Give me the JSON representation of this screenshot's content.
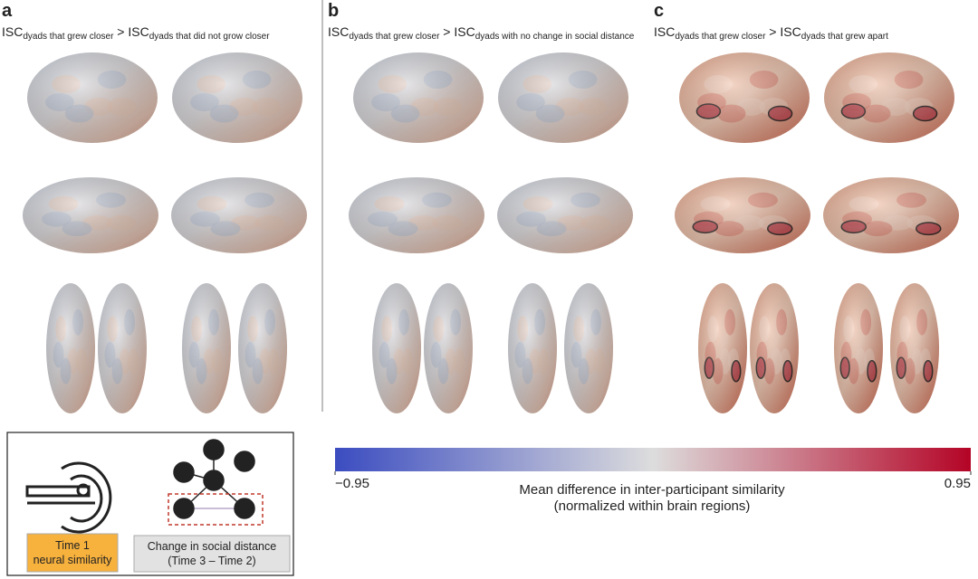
{
  "panels": [
    {
      "label": "a",
      "title": [
        {
          "text": "ISC"
        },
        {
          "text": "dyads that grew closer",
          "sub": true
        },
        {
          "text": " > ISC"
        },
        {
          "text": "dyads that did not grow closer",
          "sub": true
        }
      ]
    },
    {
      "label": "b",
      "title": [
        {
          "text": "ISC"
        },
        {
          "text": "dyads that grew closer",
          "sub": true
        },
        {
          "text": " > ISC"
        },
        {
          "text": "dyads with no change in social distance",
          "sub": true
        }
      ]
    },
    {
      "label": "c",
      "title": [
        {
          "text": "ISC"
        },
        {
          "text": "dyads that grew closer",
          "sub": true
        },
        {
          "text": " > ISC"
        },
        {
          "text": "dyads that grew apart",
          "sub": true
        }
      ]
    }
  ],
  "colorbar": {
    "lim": [
      -0.95,
      0.95
    ],
    "ticks": [
      {
        "value": -0.95,
        "label": "−0.95"
      },
      0.95
    ],
    "colors": [
      "#3b4cc0",
      "#dddddd",
      "#b40426"
    ],
    "label": [
      "Mean difference in inter-participant similarity",
      "(normalized within brain regions)"
    ]
  },
  "legend": {
    "time1": [
      "Time 1",
      "neural similarity"
    ],
    "change": [
      "Change in social distance",
      "(Time 3 – Time 2)"
    ]
  }
}
